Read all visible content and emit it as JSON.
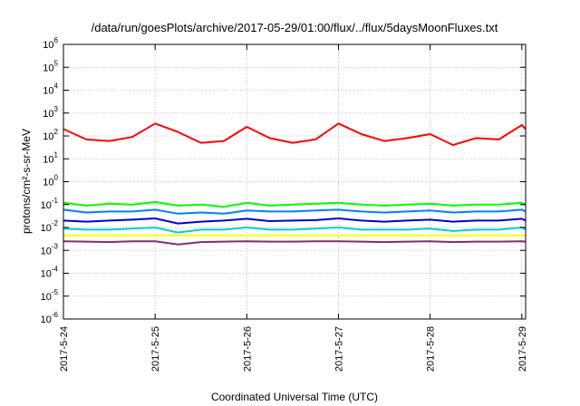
{
  "chart_data": {
    "type": "line",
    "title": "/data/run/goesPlots/archive/2017-05-29/01:00/flux/../flux/5daysMoonFluxes.txt",
    "xlabel": "Coordinated Universal Time (UTC)",
    "ylabel": "protons/cm²-s-sr-MeV",
    "yscale": "log",
    "ylim": [
      1e-06,
      1000000.0
    ],
    "xlim": [
      "2017-05-24",
      "2017-05-29 01:00"
    ],
    "grid": true,
    "legend": "none",
    "x_ticks": [
      "2017-5-24",
      "2017-5-25",
      "2017-5-26",
      "2017-5-27",
      "2017-5-28",
      "2017-5-29"
    ],
    "y_ticks": [
      {
        "base": "10",
        "exp": "6"
      },
      {
        "base": "10",
        "exp": "5"
      },
      {
        "base": "10",
        "exp": "4"
      },
      {
        "base": "10",
        "exp": "3"
      },
      {
        "base": "10",
        "exp": "2"
      },
      {
        "base": "10",
        "exp": "1"
      },
      {
        "base": "10",
        "exp": "0"
      },
      {
        "base": "10",
        "exp": "-1"
      },
      {
        "base": "10",
        "exp": "-2"
      },
      {
        "base": "10",
        "exp": "-3"
      },
      {
        "base": "10",
        "exp": "-4"
      },
      {
        "base": "10",
        "exp": "-5"
      },
      {
        "base": "10",
        "exp": "-6"
      }
    ],
    "x": [
      "2017-05-24 00:00",
      "2017-05-24 06:00",
      "2017-05-24 12:00",
      "2017-05-24 18:00",
      "2017-05-25 00:00",
      "2017-05-25 06:00",
      "2017-05-25 12:00",
      "2017-05-25 18:00",
      "2017-05-26 00:00",
      "2017-05-26 06:00",
      "2017-05-26 12:00",
      "2017-05-26 18:00",
      "2017-05-27 00:00",
      "2017-05-27 06:00",
      "2017-05-27 12:00",
      "2017-05-27 18:00",
      "2017-05-28 00:00",
      "2017-05-28 06:00",
      "2017-05-28 12:00",
      "2017-05-28 18:00",
      "2017-05-29 00:00",
      "2017-05-29 01:00"
    ],
    "series": [
      {
        "color": "#ff0000",
        "values": [
          200,
          70,
          60,
          90,
          350,
          150,
          50,
          60,
          250,
          80,
          50,
          70,
          350,
          120,
          60,
          80,
          120,
          40,
          80,
          70,
          300,
          200
        ]
      },
      {
        "color": "#00ff00",
        "values": [
          0.12,
          0.09,
          0.11,
          0.1,
          0.13,
          0.09,
          0.1,
          0.08,
          0.12,
          0.09,
          0.1,
          0.11,
          0.12,
          0.1,
          0.09,
          0.1,
          0.11,
          0.09,
          0.1,
          0.1,
          0.12,
          0.1
        ]
      },
      {
        "color": "#0080ff",
        "values": [
          0.06,
          0.045,
          0.05,
          0.05,
          0.06,
          0.04,
          0.045,
          0.04,
          0.055,
          0.05,
          0.05,
          0.055,
          0.06,
          0.05,
          0.045,
          0.05,
          0.055,
          0.045,
          0.05,
          0.05,
          0.06,
          0.05
        ]
      },
      {
        "color": "#0000cc",
        "values": [
          0.02,
          0.018,
          0.02,
          0.022,
          0.025,
          0.015,
          0.018,
          0.02,
          0.024,
          0.019,
          0.02,
          0.021,
          0.025,
          0.02,
          0.018,
          0.02,
          0.022,
          0.018,
          0.02,
          0.02,
          0.024,
          0.02
        ]
      },
      {
        "color": "#00d0d0",
        "values": [
          0.009,
          0.008,
          0.008,
          0.009,
          0.01,
          0.006,
          0.008,
          0.008,
          0.01,
          0.008,
          0.008,
          0.009,
          0.01,
          0.008,
          0.008,
          0.008,
          0.009,
          0.007,
          0.008,
          0.008,
          0.01,
          0.008
        ]
      },
      {
        "color": "#ffff00",
        "values": [
          0.0045,
          0.0045,
          0.0045,
          0.0045,
          0.0045,
          0.0045,
          0.0045,
          0.0045,
          0.0045,
          0.0045,
          0.0045,
          0.0045,
          0.0045,
          0.0045,
          0.0045,
          0.0045,
          0.0045,
          0.0045,
          0.0045,
          0.0045,
          0.0045,
          0.0045
        ]
      },
      {
        "color": "#80306a",
        "values": [
          0.0025,
          0.0024,
          0.0023,
          0.0025,
          0.0025,
          0.0018,
          0.0023,
          0.0024,
          0.0025,
          0.0024,
          0.0024,
          0.0025,
          0.0025,
          0.0024,
          0.0023,
          0.0024,
          0.0025,
          0.0023,
          0.0024,
          0.0024,
          0.0025,
          0.0024
        ]
      }
    ]
  }
}
